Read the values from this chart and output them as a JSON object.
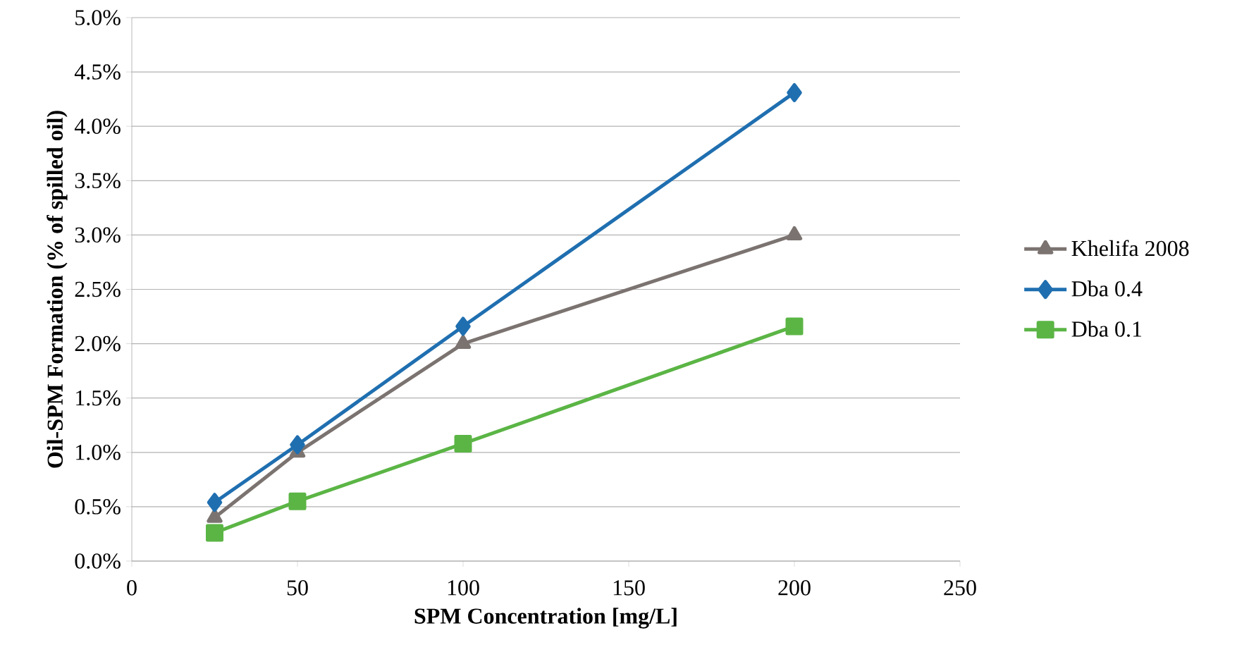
{
  "chart_data": {
    "type": "line",
    "xlabel": "SPM Concentration [mg/L]",
    "ylabel": "Oil-SPM Formation (% of spilled oil)",
    "x": [
      25,
      50,
      100,
      200
    ],
    "series": [
      {
        "name": "Khelifa 2008",
        "color": "#7b7370",
        "marker": "triangle",
        "values": [
          0.4,
          1.0,
          2.0,
          3.0
        ]
      },
      {
        "name": "Dba 0.4",
        "color": "#1f6fb0",
        "marker": "diamond",
        "values": [
          0.54,
          1.07,
          2.16,
          4.31
        ]
      },
      {
        "name": "Dba 0.1",
        "color": "#5bb545",
        "marker": "square",
        "values": [
          0.26,
          0.55,
          1.08,
          2.16
        ]
      }
    ],
    "xlim": [
      0,
      250
    ],
    "xticks": [
      0,
      50,
      100,
      150,
      200,
      250
    ],
    "ylim": [
      0,
      5
    ],
    "yticks": [
      {
        "value": 0,
        "label": "0.0%"
      },
      {
        "value": 0.5,
        "label": "0.5%"
      },
      {
        "value": 1,
        "label": "1.0%"
      },
      {
        "value": 1.5,
        "label": "1.5%"
      },
      {
        "value": 2,
        "label": "2.0%"
      },
      {
        "value": 2.5,
        "label": "2.5%"
      },
      {
        "value": 3,
        "label": "3.0%"
      },
      {
        "value": 3.5,
        "label": "3.5%"
      },
      {
        "value": 4,
        "label": "4.0%"
      },
      {
        "value": 4.5,
        "label": "4.5%"
      },
      {
        "value": 5,
        "label": "5.0%"
      }
    ],
    "grid": "y",
    "legend": "right",
    "line_style": "solid"
  }
}
